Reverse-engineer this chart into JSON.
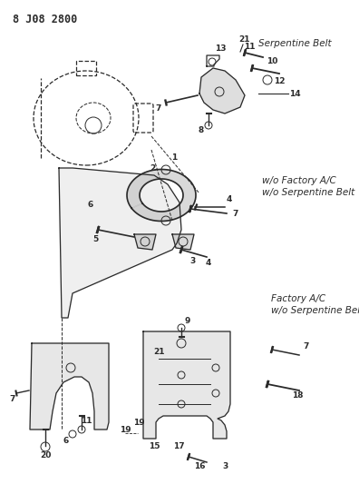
{
  "title": "8 J08 2800",
  "bg_color": "#ffffff",
  "fg_color": "#2a2a2a",
  "labels": {
    "factory_ac": "Factory A/C\nw/o Serpentine Belt",
    "wo_factory_ac": "w/o Factory A/C\nw/o Serpentine Belt",
    "serpentine": "Serpentine Belt"
  },
  "label_pos": {
    "factory_ac": [
      0.755,
      0.63
    ],
    "wo_factory_ac": [
      0.73,
      0.385
    ],
    "serpentine": [
      0.72,
      0.09
    ]
  },
  "figsize": [
    3.96,
    5.33
  ],
  "dpi": 100
}
